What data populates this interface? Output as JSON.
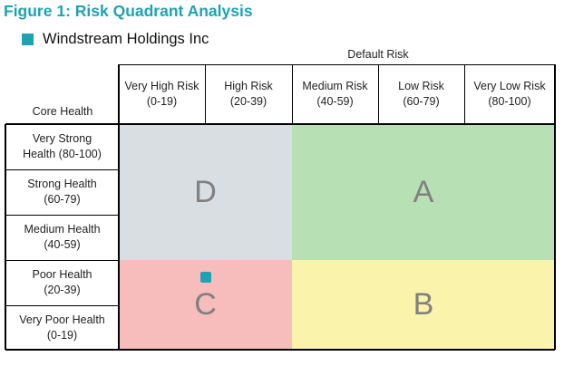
{
  "figure_title": "Figure 1: Risk Quadrant Analysis",
  "colors": {
    "accent": "#1fa3b3",
    "quadrant_D": "#d9dee2",
    "quadrant_A": "#b7e0b5",
    "quadrant_C": "#f7bcbc",
    "quadrant_B": "#faf3ab"
  },
  "chart_data": {
    "type": "heatmap",
    "x_axis_title": "Default Risk",
    "y_axis_title": "Core Health",
    "x_categories": [
      "Very High Risk\n(0-19)",
      "High Risk\n(20-39)",
      "Medium Risk\n(40-59)",
      "Low Risk\n(60-79)",
      "Very Low Risk\n(80-100)"
    ],
    "y_categories": [
      "Very Strong\nHealth (80-100)",
      "Strong Health\n(60-79)",
      "Medium Health\n(40-59)",
      "Poor Health\n(20-39)",
      "Very Poor Health\n(0-19)"
    ],
    "quadrants": [
      {
        "label": "D",
        "x_range": [
          0,
          39
        ],
        "y_range": [
          40,
          100
        ],
        "color": "#d9dee2"
      },
      {
        "label": "A",
        "x_range": [
          40,
          100
        ],
        "y_range": [
          40,
          100
        ],
        "color": "#b7e0b5"
      },
      {
        "label": "C",
        "x_range": [
          0,
          39
        ],
        "y_range": [
          0,
          39
        ],
        "color": "#f7bcbc"
      },
      {
        "label": "B",
        "x_range": [
          40,
          100
        ],
        "y_range": [
          0,
          39
        ],
        "color": "#faf3ab"
      }
    ],
    "series": [
      {
        "name": "Windstream Holdings Inc",
        "color": "#1fa3b3",
        "x": 20,
        "y": 32
      }
    ]
  }
}
